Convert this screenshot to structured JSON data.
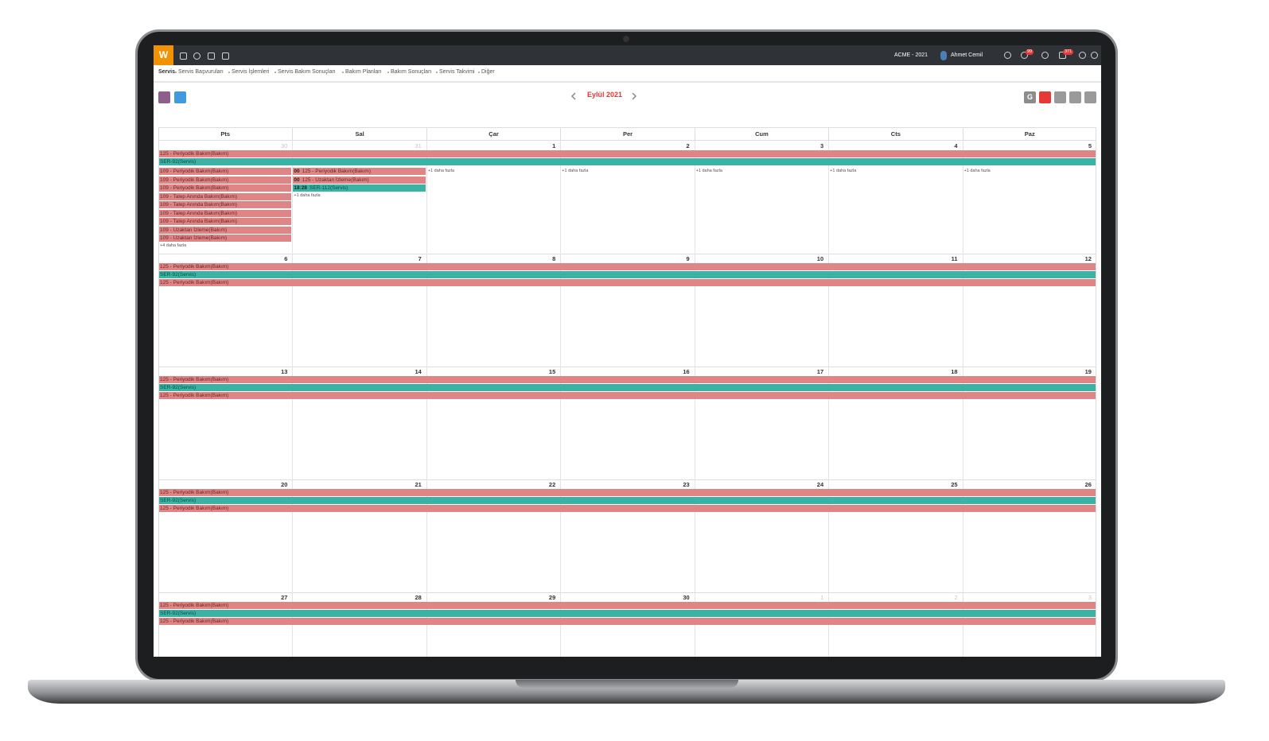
{
  "topbar": {
    "logo": "W",
    "company": "ACME - 2021",
    "user": "Ahmet Cemil",
    "badges": [
      "99",
      "371"
    ]
  },
  "breadcrumb": [
    "Servis",
    "Servis Başvuruları",
    "Servis İşlemleri",
    "Servis Bakım Sonuçları",
    "Bakım Planları",
    "Bakım Sonuçları",
    "Servis Takvimi",
    "Diğer"
  ],
  "toolbar": {
    "view_button": "G"
  },
  "calendar": {
    "title": "Eylül 2021",
    "weekdays": [
      "Pts",
      "Sal",
      "Çar",
      "Per",
      "Cum",
      "Cts",
      "Paz"
    ],
    "weeks": [
      {
        "days": [
          {
            "label": "30",
            "muted": true
          },
          {
            "label": "31",
            "muted": true
          },
          {
            "label": "1"
          },
          {
            "label": "2"
          },
          {
            "label": "3"
          },
          {
            "label": "4"
          },
          {
            "label": "5"
          }
        ],
        "bars": [
          {
            "text": "125 - Periyodik Bakım(Bakım)",
            "color": "#e08585"
          },
          {
            "text": "SER-92(Servis)",
            "color": "#3bb3a4"
          }
        ],
        "cells": [
          {
            "events": [
              {
                "text": "109 - Periyodik Bakım(Bakım)",
                "color": "#e08585"
              },
              {
                "text": "109 - Periyodik Bakım(Bakım)",
                "color": "#e08585"
              },
              {
                "text": "109 - Periyodik Bakım(Bakım)",
                "color": "#e08585"
              },
              {
                "text": "109 - Talep Anında Bakım(Bakım)",
                "color": "#e08585"
              },
              {
                "text": "109 - Talep Anında Bakım(Bakım)",
                "color": "#e08585"
              },
              {
                "text": "109 - Talep Anında Bakım(Bakım)",
                "color": "#e08585"
              },
              {
                "text": "109 - Talep Anında Bakım(Bakım)",
                "color": "#e08585"
              },
              {
                "text": "109 - Uzaktan İzleme(Bakım)",
                "color": "#e08585"
              },
              {
                "text": "109 - Uzaktan İzleme(Bakım)",
                "color": "#e08585"
              }
            ],
            "more": "+4 daha fazla"
          },
          {
            "events": [
              {
                "time": "00",
                "text": "125 - Periyodik Bakım(Bakım)",
                "color": "#e08585"
              },
              {
                "time": "00",
                "text": "125 - Uzaktan İzleme(Bakım)",
                "color": "#e08585"
              },
              {
                "time": "18:28",
                "text": "SER-112(Servis)",
                "color": "#3bb3a4"
              }
            ],
            "more": "+1 daha fazla"
          },
          {
            "events": [],
            "more": "+1 daha fazla"
          },
          {
            "events": [],
            "more": "+1 daha fazla"
          },
          {
            "events": [],
            "more": "+1 daha fazla"
          },
          {
            "events": [],
            "more": "+1 daha fazla"
          },
          {
            "events": [],
            "more": "+1 daha fazla"
          }
        ]
      },
      {
        "days": [
          {
            "label": "6"
          },
          {
            "label": "7"
          },
          {
            "label": "8"
          },
          {
            "label": "9"
          },
          {
            "label": "10"
          },
          {
            "label": "11"
          },
          {
            "label": "12"
          }
        ],
        "bars": [
          {
            "text": "125 - Periyodik Bakım(Bakım)",
            "color": "#e08585"
          },
          {
            "text": "SER-92(Servis)",
            "color": "#3bb3a4"
          },
          {
            "text": "125 - Periyodik Bakım(Bakım)",
            "color": "#e08585"
          }
        ]
      },
      {
        "days": [
          {
            "label": "13"
          },
          {
            "label": "14"
          },
          {
            "label": "15"
          },
          {
            "label": "16"
          },
          {
            "label": "17"
          },
          {
            "label": "18"
          },
          {
            "label": "19"
          }
        ],
        "bars": [
          {
            "text": "125 - Periyodik Bakım(Bakım)",
            "color": "#e08585"
          },
          {
            "text": "SER-92(Servis)",
            "color": "#3bb3a4"
          },
          {
            "text": "125 - Periyodik Bakım(Bakım)",
            "color": "#e08585"
          }
        ]
      },
      {
        "days": [
          {
            "label": "20"
          },
          {
            "label": "21"
          },
          {
            "label": "22"
          },
          {
            "label": "23"
          },
          {
            "label": "24"
          },
          {
            "label": "25"
          },
          {
            "label": "26"
          }
        ],
        "bars": [
          {
            "text": "125 - Periyodik Bakım(Bakım)",
            "color": "#e08585"
          },
          {
            "text": "SER-92(Servis)",
            "color": "#3bb3a4"
          },
          {
            "text": "125 - Periyodik Bakım(Bakım)",
            "color": "#e08585"
          }
        ]
      },
      {
        "days": [
          {
            "label": "27"
          },
          {
            "label": "28"
          },
          {
            "label": "29"
          },
          {
            "label": "30"
          },
          {
            "label": "1",
            "muted": true
          },
          {
            "label": "2",
            "muted": true
          },
          {
            "label": "3",
            "muted": true
          }
        ],
        "bars": [
          {
            "text": "125 - Periyodik Bakım(Bakım)",
            "color": "#e08585"
          },
          {
            "text": "SER-92(Servis)",
            "color": "#3bb3a4"
          },
          {
            "text": "125 - Periyodik Bakım(Bakım)",
            "color": "#e08585"
          }
        ]
      }
    ]
  }
}
